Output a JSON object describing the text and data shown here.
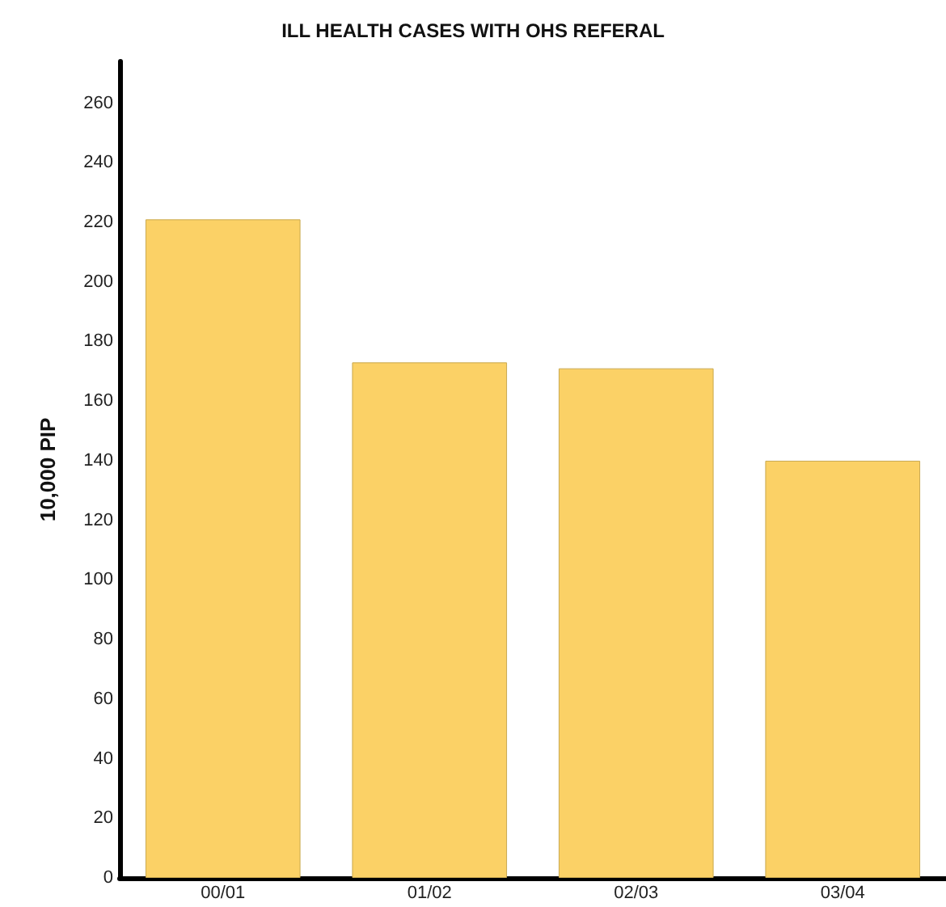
{
  "chart_data": {
    "type": "bar",
    "title": "ILL HEALTH CASES WITH OHS REFERAL",
    "ylabel": "10,000 PIP",
    "categories": [
      "00/01",
      "01/02",
      "02/03",
      "03/04"
    ],
    "values": [
      221,
      173,
      171,
      140
    ],
    "color": "#fbd166",
    "ylim": [
      0,
      274
    ],
    "yticks": [
      0,
      20,
      40,
      60,
      80,
      100,
      120,
      140,
      160,
      180,
      200,
      220,
      240,
      260
    ],
    "grid": false
  }
}
